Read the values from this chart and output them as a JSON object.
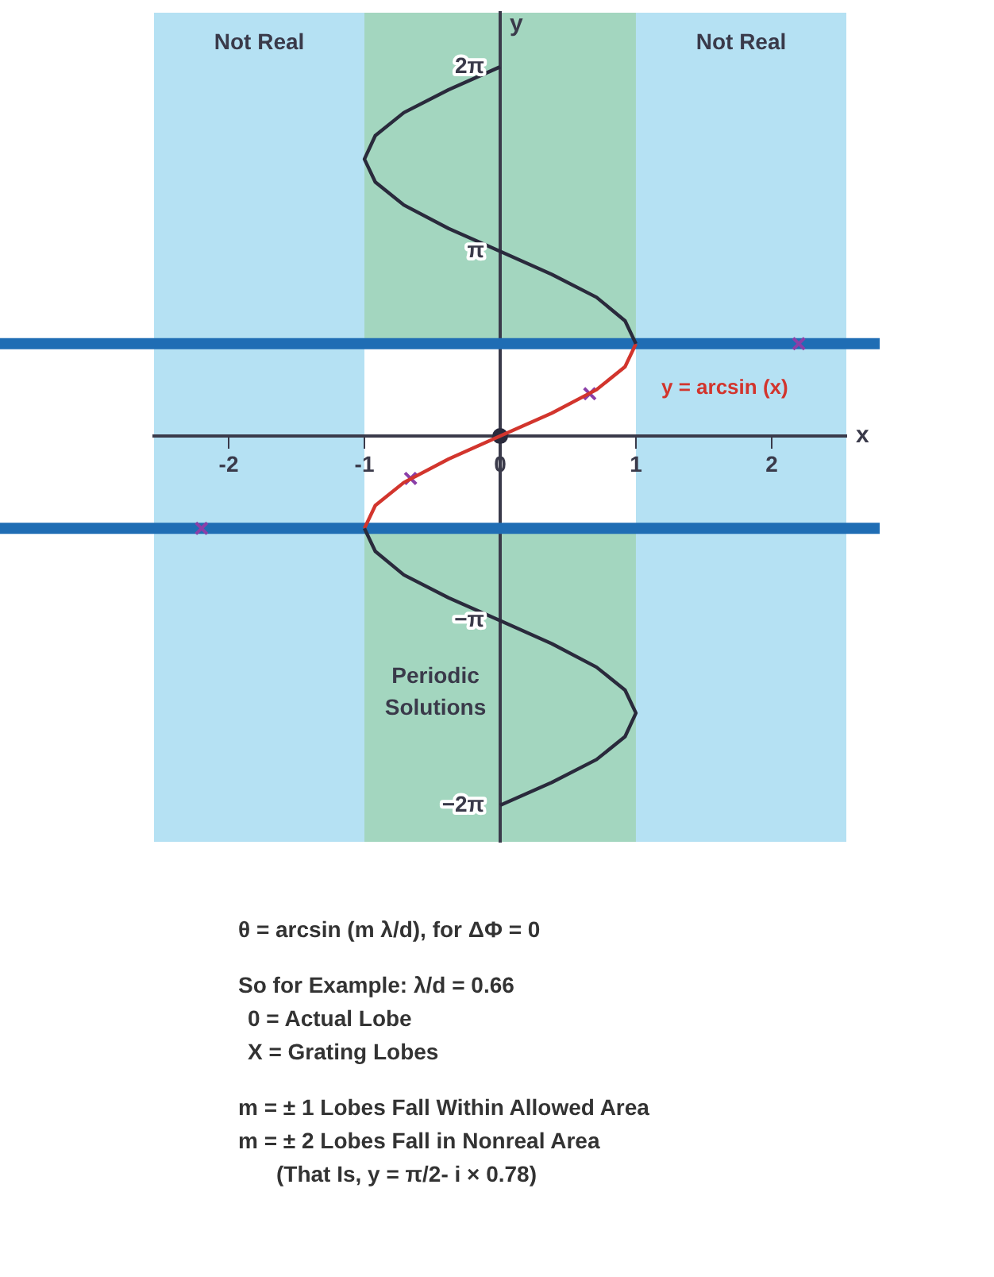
{
  "chart_data": {
    "type": "line",
    "xlabel": "x",
    "ylabel": "y",
    "xlim": [
      -2.55,
      2.55
    ],
    "ylim": [
      -6.9,
      7.2
    ],
    "xticks": [
      -2,
      -1,
      0,
      1,
      2
    ],
    "yticks": [
      {
        "value": -6.28,
        "label": "−2π"
      },
      {
        "value": -3.14,
        "label": "−π"
      },
      {
        "value": 3.14,
        "label": "π"
      },
      {
        "value": 6.28,
        "label": "2π"
      }
    ],
    "grid": false,
    "legend": false,
    "bands": [
      {
        "axis": "x",
        "from": -1,
        "to": 1,
        "label": "Periodic Solutions",
        "color": "#a3d6bf"
      },
      {
        "axis": "y",
        "from": -1.57,
        "to": 1.57,
        "color": "#ffffff"
      },
      {
        "axis": "x",
        "from": -2.55,
        "to": -1,
        "label": "Not Real",
        "color": "#b5e1f3"
      },
      {
        "axis": "x",
        "from": 1,
        "to": 2.55,
        "label": "Not Real",
        "color": "#b5e1f3"
      }
    ],
    "ref_lines": [
      {
        "axis": "y",
        "value": 1.57,
        "color": "#1f6db4"
      },
      {
        "axis": "y",
        "value": -1.57,
        "color": "#1f6db4"
      }
    ],
    "series": [
      {
        "type": "line",
        "color": "#2a2a3c",
        "x": [
          1,
          0.92,
          0.71,
          0.38,
          0,
          -0.38,
          -0.71,
          -0.92,
          -1,
          -0.92,
          -0.71,
          -0.38,
          0,
          null,
          -1,
          -0.92,
          -0.71,
          -0.38,
          0,
          0.38,
          0.71,
          0.92,
          1,
          0.92,
          0.71,
          0.38,
          0
        ],
        "values": [
          1.57,
          1.96,
          2.36,
          2.75,
          3.14,
          3.53,
          3.93,
          4.32,
          4.71,
          5.11,
          5.5,
          5.89,
          6.28,
          null,
          -1.57,
          -1.96,
          -2.36,
          -2.75,
          -3.14,
          -3.53,
          -3.93,
          -4.32,
          -4.71,
          -5.11,
          -5.5,
          -5.89,
          -6.28
        ]
      },
      {
        "type": "line",
        "name": "y = arcsin (x)",
        "color": "#d2352d",
        "x": [
          -1,
          -0.92,
          -0.71,
          -0.38,
          0,
          0.38,
          0.71,
          0.92,
          1
        ],
        "values": [
          -1.57,
          -1.18,
          -0.79,
          -0.39,
          0,
          0.39,
          0.79,
          1.18,
          1.57
        ]
      },
      {
        "type": "scatter",
        "marker": "circle",
        "color": "#2a2a3c",
        "x": [
          0
        ],
        "values": [
          0
        ]
      },
      {
        "type": "scatter",
        "marker": "cross",
        "color": "#8b3fa8",
        "x": [
          0.66,
          -0.66,
          2.2,
          -2.2
        ],
        "values": [
          0.72,
          -0.72,
          1.57,
          -1.57
        ]
      }
    ],
    "annotations": [
      "θ = arcsin (m λ/d), for ΔΦ = 0",
      "So for Example: λ/d = 0.66",
      "0 = Actual Lobe",
      "X = Grating Lobes",
      "m = ± 1 Lobes Fall Within Allowed Area",
      "m = ± 2 Lobes Fall in Nonreal Area",
      "(That Is, y = π/2- i × 0.78)"
    ]
  }
}
